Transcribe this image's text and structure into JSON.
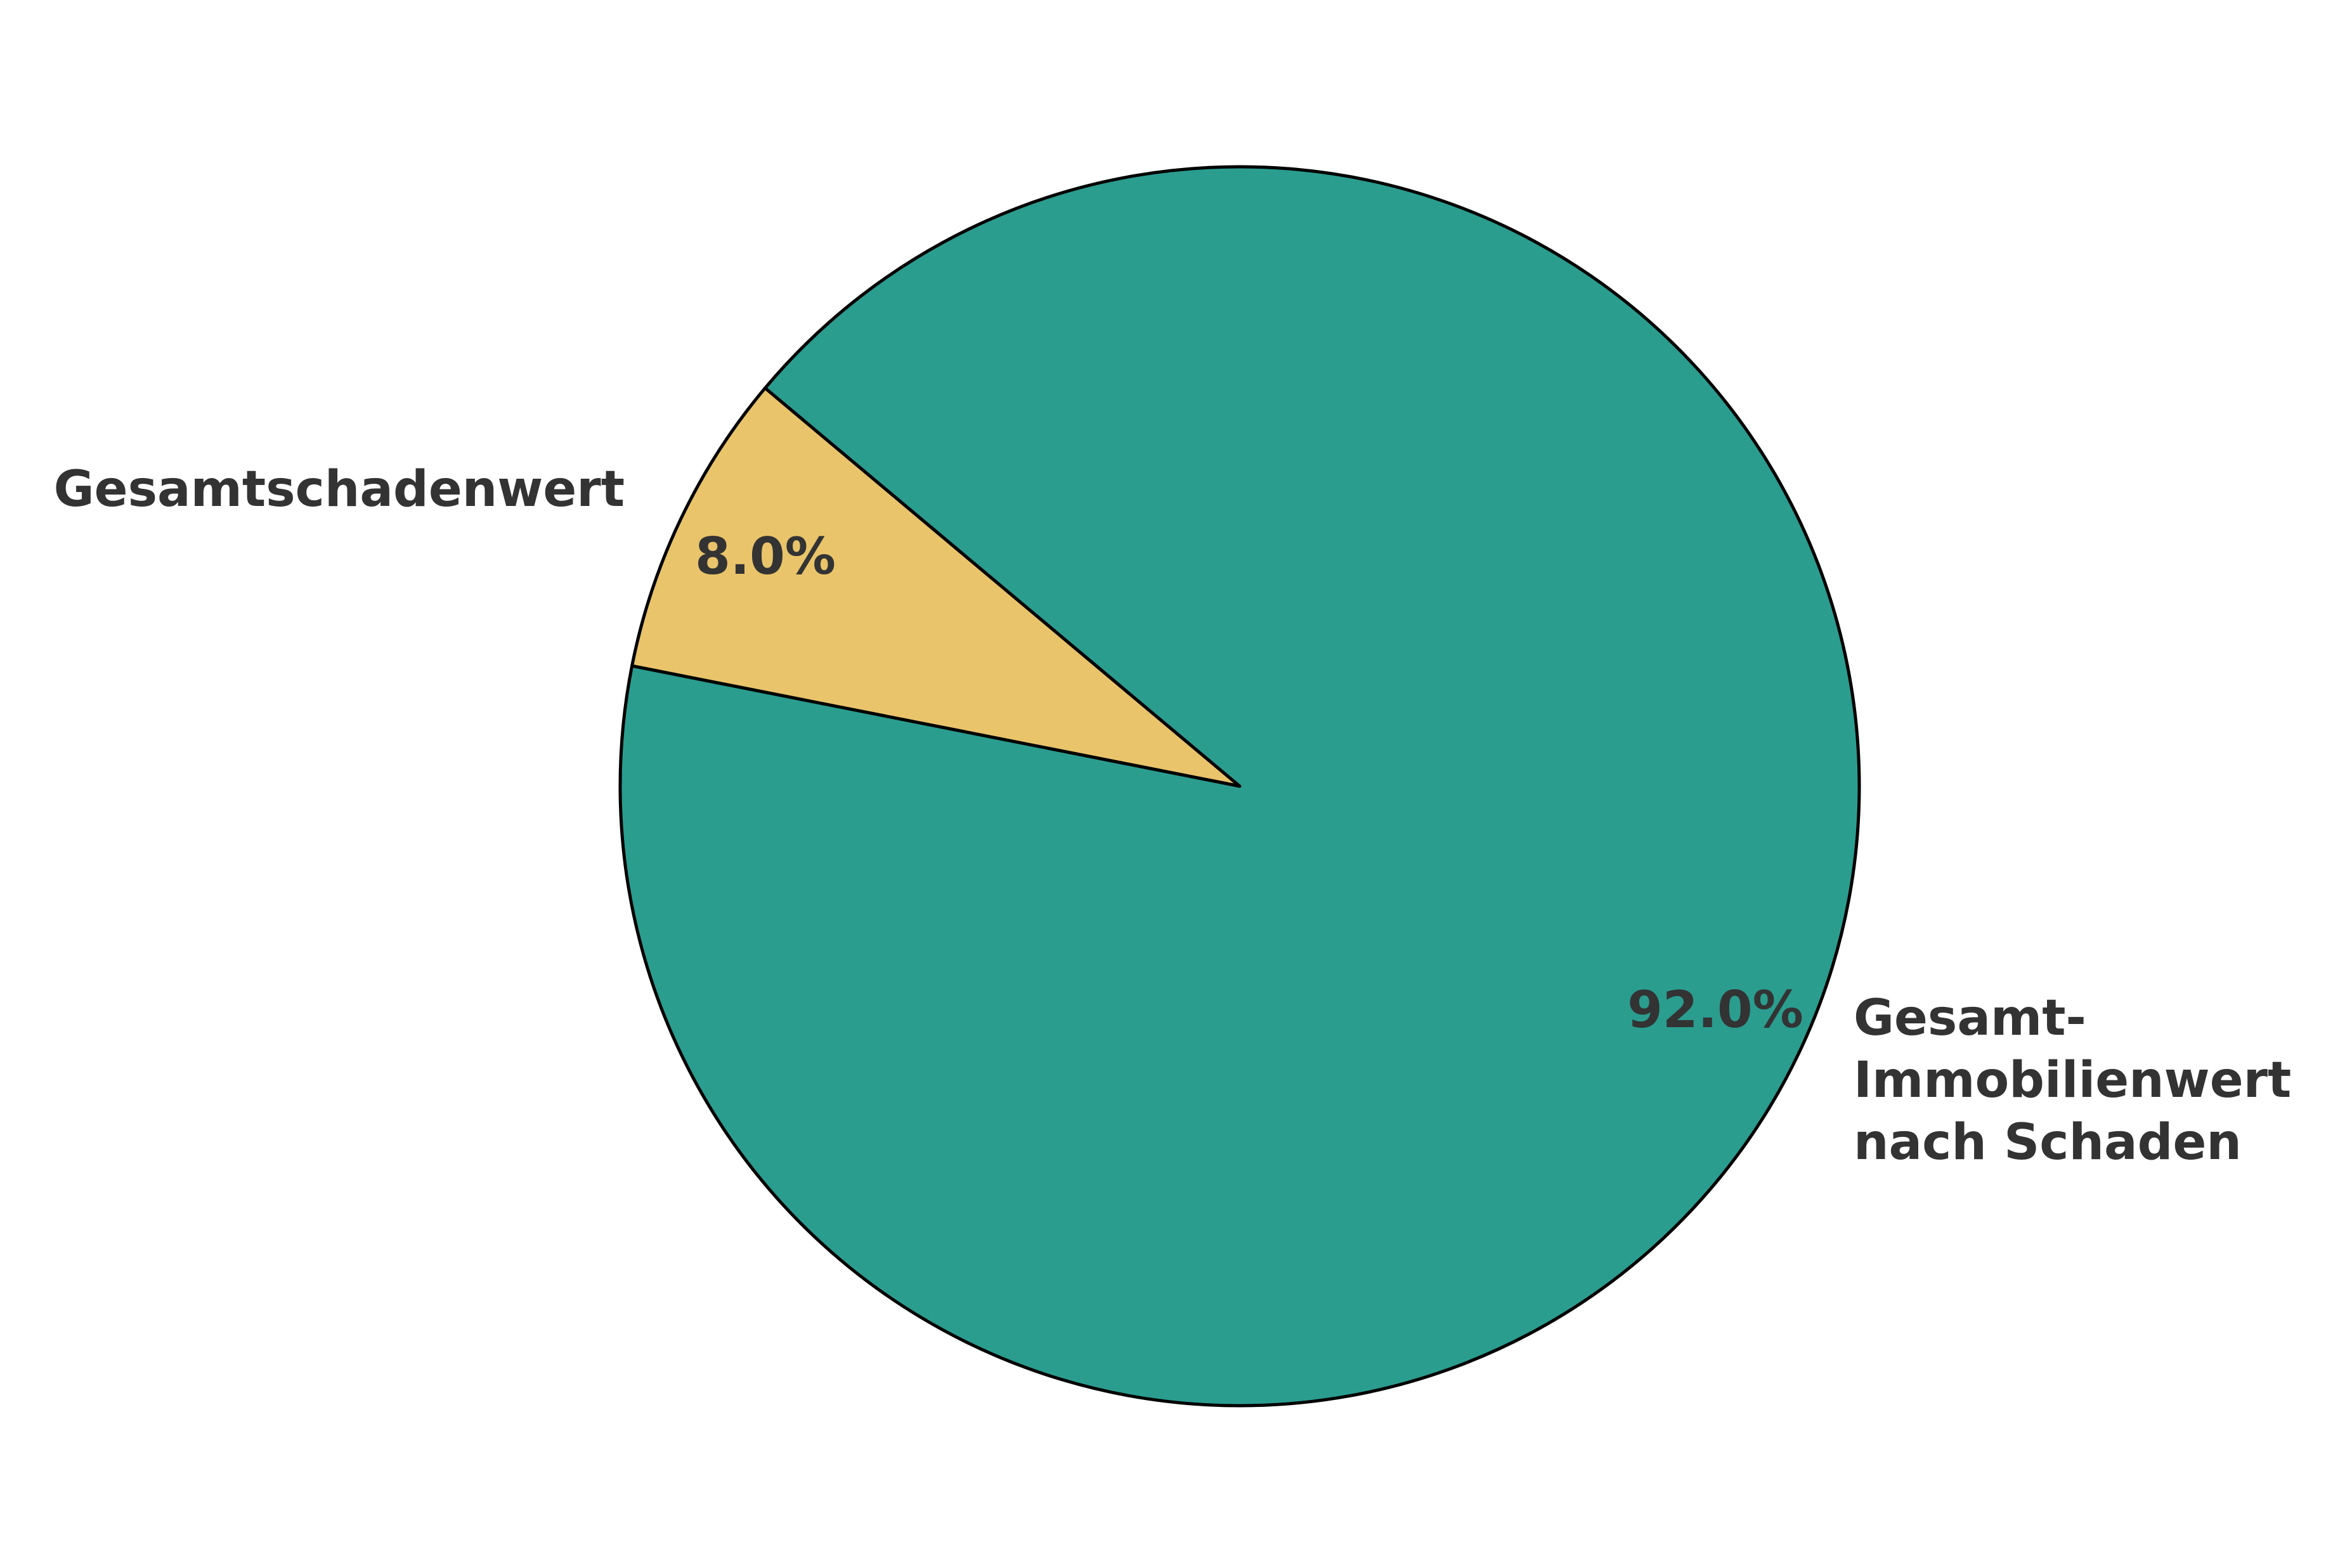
{
  "chart_data": {
    "type": "pie",
    "title": "",
    "slices": [
      {
        "label": "Gesamtschadenwert",
        "value": 8.0,
        "pct_label": "8.0%",
        "color": "#E9C46A"
      },
      {
        "label_lines": [
          "Gesamt-",
          "Immobilienwert",
          "nach Schaden"
        ],
        "value": 92.0,
        "pct_label": "92.0%",
        "color": "#2A9D8F"
      }
    ],
    "edge_color": "#000000",
    "text_color": "#333333",
    "legend": "none"
  }
}
